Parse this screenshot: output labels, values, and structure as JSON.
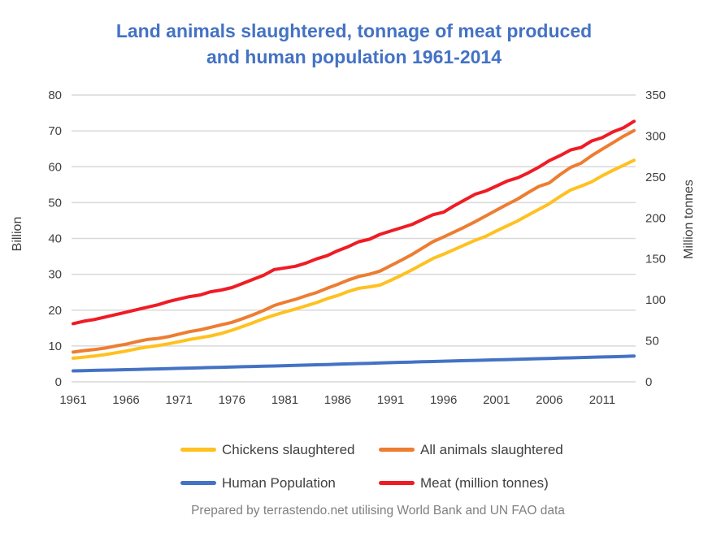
{
  "title": {
    "line1": "Land animals slaughtered, tonnage of meat produced",
    "line2": "and human population 1961-2014"
  },
  "footer": "Prepared by terrastendo.net utilising World Bank and UN FAO data",
  "colors": {
    "title": "#4472C4",
    "axis_text": "#404040",
    "gridline": "#D9D9D9",
    "footer_text": "#808080"
  },
  "chart_data": {
    "type": "line",
    "title": "Land animals slaughtered, tonnage of meat produced and human population 1961-2014",
    "grid": true,
    "legend_position": "bottom",
    "x_range": [
      1961,
      2014
    ],
    "x_tick_labels": [
      1961,
      1966,
      1971,
      1976,
      1981,
      1986,
      1991,
      1996,
      2001,
      2006,
      2011
    ],
    "left_axis": {
      "title": "Billion",
      "min": 0,
      "max": 80,
      "step": 10
    },
    "right_axis": {
      "title": "Million tonnes",
      "min": 0,
      "max": 350,
      "step": 50
    },
    "years": [
      1961,
      1962,
      1963,
      1964,
      1965,
      1966,
      1967,
      1968,
      1969,
      1970,
      1971,
      1972,
      1973,
      1974,
      1975,
      1976,
      1977,
      1978,
      1979,
      1980,
      1981,
      1982,
      1983,
      1984,
      1985,
      1986,
      1987,
      1988,
      1989,
      1990,
      1991,
      1992,
      1993,
      1994,
      1995,
      1996,
      1997,
      1998,
      1999,
      2000,
      2001,
      2002,
      2003,
      2004,
      2005,
      2006,
      2007,
      2008,
      2009,
      2010,
      2011,
      2012,
      2013,
      2014
    ],
    "series": [
      {
        "name": "Chickens slaughtered",
        "color": "#FFC120",
        "axis": "left",
        "unit": "billion",
        "values": [
          6.6,
          6.9,
          7.2,
          7.6,
          8.1,
          8.6,
          9.2,
          9.7,
          10.1,
          10.6,
          11.2,
          11.8,
          12.3,
          12.8,
          13.5,
          14.4,
          15.4,
          16.5,
          17.6,
          18.6,
          19.5,
          20.3,
          21.2,
          22.1,
          23.2,
          24.1,
          25.2,
          26.1,
          26.5,
          27.0,
          28.3,
          29.7,
          31.2,
          32.8,
          34.4,
          35.6,
          36.9,
          38.2,
          39.5,
          40.6,
          42.1,
          43.5,
          44.9,
          46.5,
          48.1,
          49.7,
          51.7,
          53.5,
          54.6,
          55.8,
          57.5,
          59.0,
          60.4,
          61.8
        ]
      },
      {
        "name": "All animals slaughtered",
        "color": "#ED7D31",
        "axis": "left",
        "unit": "billion",
        "values": [
          8.3,
          8.7,
          9.0,
          9.4,
          10.0,
          10.5,
          11.2,
          11.8,
          12.1,
          12.6,
          13.3,
          14.0,
          14.5,
          15.2,
          15.9,
          16.6,
          17.6,
          18.7,
          19.9,
          21.3,
          22.2,
          23.0,
          24.0,
          24.9,
          26.1,
          27.2,
          28.4,
          29.4,
          30.0,
          30.9,
          32.4,
          33.9,
          35.5,
          37.3,
          39.1,
          40.4,
          41.8,
          43.2,
          44.7,
          46.3,
          47.9,
          49.5,
          51.0,
          52.8,
          54.5,
          55.5,
          57.8,
          59.8,
          61.0,
          63.1,
          64.9,
          66.7,
          68.5,
          70.1
        ]
      },
      {
        "name": "Human Population",
        "color": "#4472C4",
        "axis": "left",
        "unit": "billion",
        "values": [
          3.07,
          3.13,
          3.19,
          3.26,
          3.32,
          3.39,
          3.46,
          3.53,
          3.61,
          3.68,
          3.76,
          3.84,
          3.91,
          3.99,
          4.06,
          4.14,
          4.21,
          4.28,
          4.36,
          4.43,
          4.51,
          4.59,
          4.67,
          4.75,
          4.83,
          4.92,
          5.0,
          5.09,
          5.17,
          5.26,
          5.35,
          5.43,
          5.51,
          5.59,
          5.67,
          5.75,
          5.83,
          5.91,
          5.98,
          6.06,
          6.14,
          6.21,
          6.29,
          6.37,
          6.45,
          6.53,
          6.61,
          6.69,
          6.77,
          6.85,
          6.93,
          7.01,
          7.1,
          7.18
        ]
      },
      {
        "name": "Meat (million tonnes)",
        "color": "#EF1C25",
        "axis": "right",
        "unit": "million tonnes",
        "values": [
          71,
          74,
          76,
          79,
          82,
          85,
          88,
          91,
          94,
          98,
          101,
          104,
          106,
          110,
          112,
          115,
          120,
          125,
          130,
          137,
          139,
          141,
          145,
          150,
          154,
          160,
          165,
          171,
          174,
          180,
          184,
          188,
          192,
          198,
          204,
          207,
          215,
          222,
          229,
          233,
          239,
          245,
          249,
          255,
          262,
          270,
          276,
          283,
          286,
          294,
          298,
          305,
          310,
          318
        ]
      }
    ]
  }
}
